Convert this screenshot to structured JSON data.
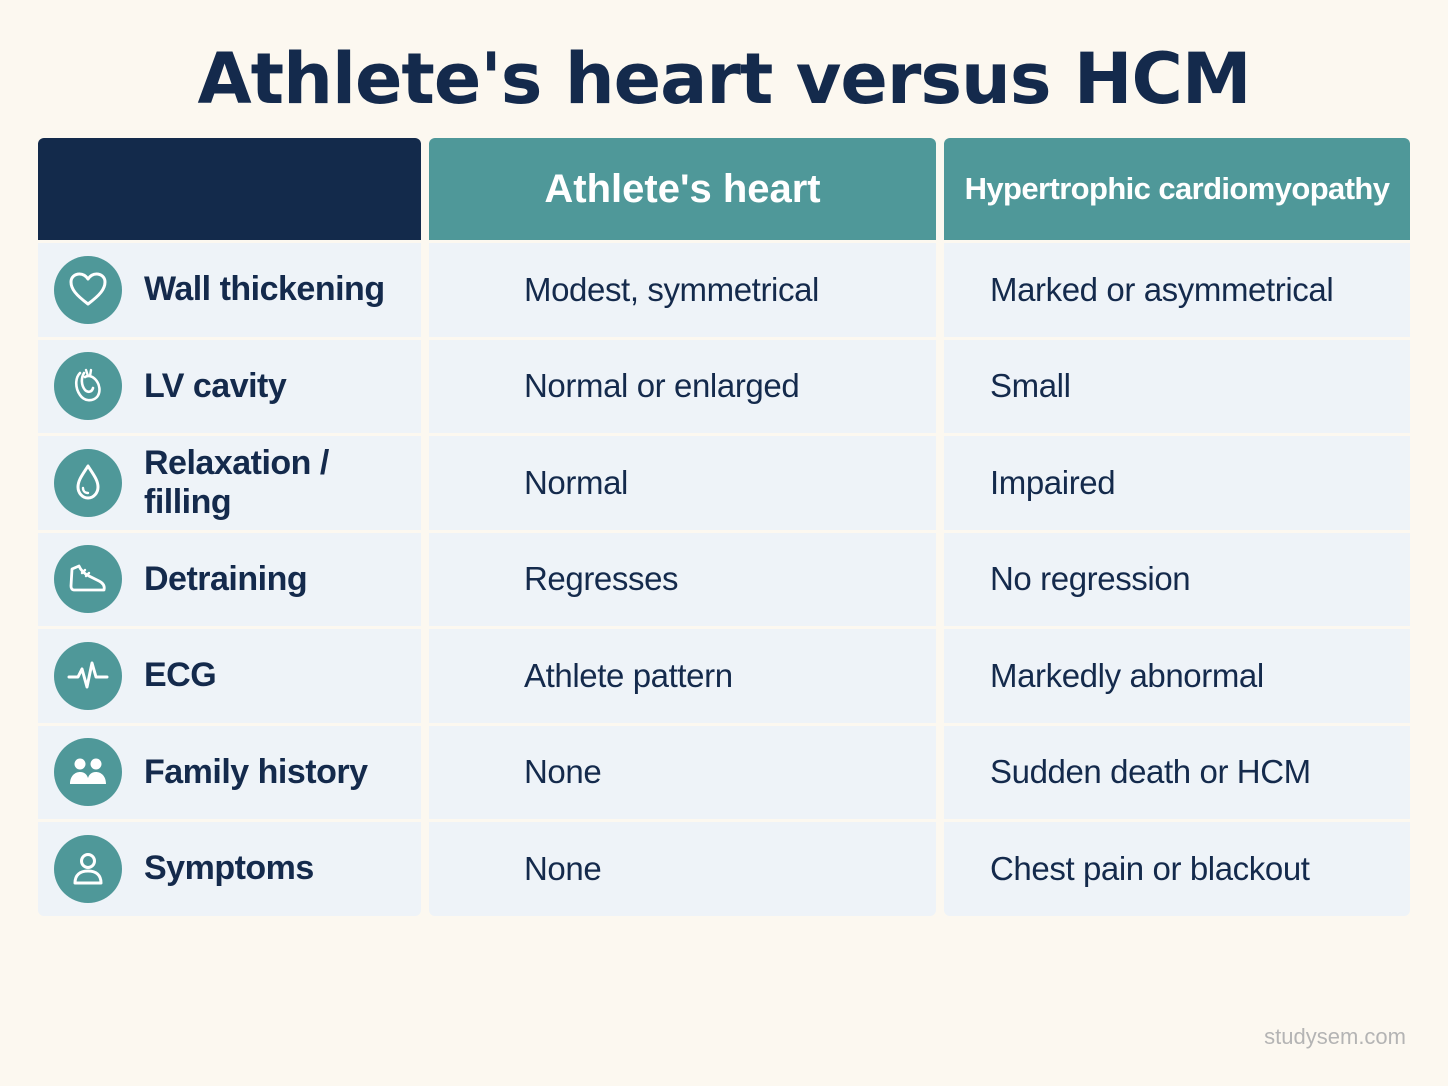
{
  "title": "Athlete's heart versus HCM",
  "columns": [
    "",
    "Athlete's heart",
    "Hypertrophic cardiomyopathy"
  ],
  "rows": [
    {
      "icon": "heart-icon",
      "label": "Wall thickening",
      "athlete": "Modest, symmetrical",
      "hcm": "Marked or asymmetrical"
    },
    {
      "icon": "heart-organ-icon",
      "label": "LV cavity",
      "athlete": "Normal or enlarged",
      "hcm": "Small"
    },
    {
      "icon": "droplet-icon",
      "label": "Relaxation / filling",
      "athlete": "Normal",
      "hcm": "Impaired"
    },
    {
      "icon": "shoe-icon",
      "label": "Detraining",
      "athlete": "Regresses",
      "hcm": "No regression"
    },
    {
      "icon": "heartbeat-icon",
      "label": "ECG",
      "athlete": "Athlete pattern",
      "hcm": "Markedly abnormal"
    },
    {
      "icon": "family-icon",
      "label": "Family history",
      "athlete": "None",
      "hcm": "Sudden death or HCM"
    },
    {
      "icon": "person-icon",
      "label": "Symptoms",
      "athlete": "None",
      "hcm": "Chest pain or blackout"
    }
  ],
  "colors": {
    "navy": "#132a4b",
    "teal": "#4f9899",
    "cell": "#eef3f8",
    "background": "#fcf8f0"
  },
  "watermark": "studysem.com"
}
